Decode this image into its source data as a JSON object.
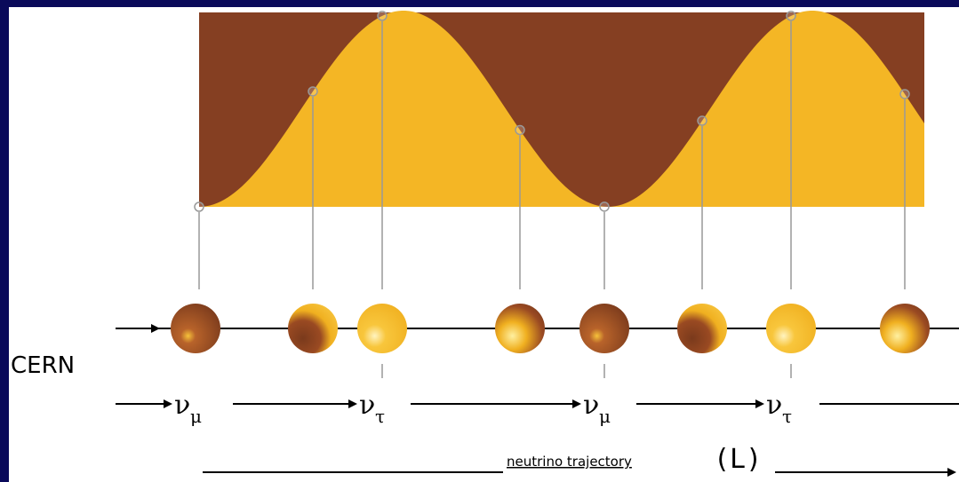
{
  "left_label": "CERN",
  "flavors": [
    {
      "symbol": "ν",
      "sub": "μ"
    },
    {
      "symbol": "ν",
      "sub": "τ"
    },
    {
      "symbol": "ν",
      "sub": "μ"
    },
    {
      "symbol": "ν",
      "sub": "τ"
    }
  ],
  "axis_label": "neutrino trajectory",
  "axis_symbol": "(L)"
}
